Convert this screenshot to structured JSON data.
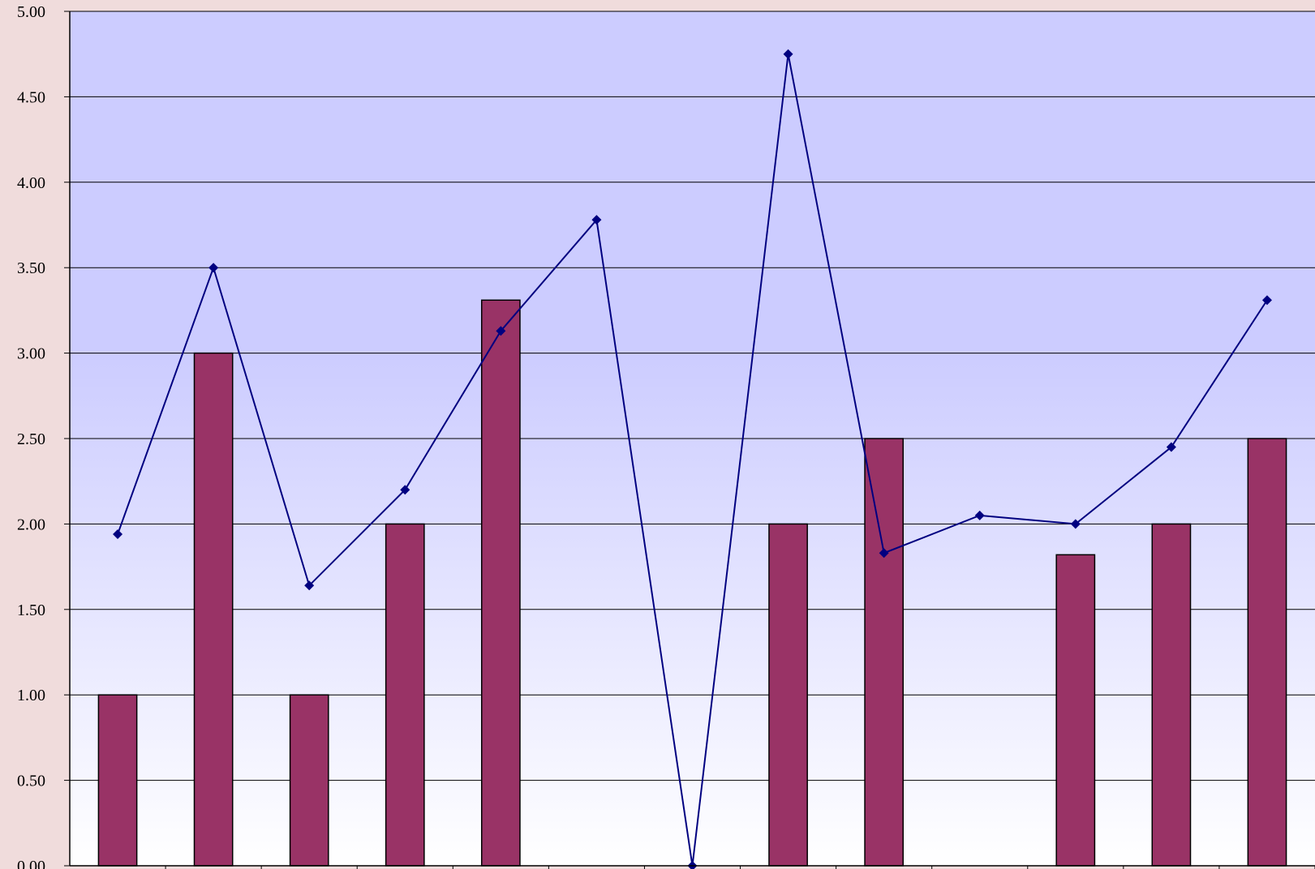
{
  "chart_data": {
    "type": "bar",
    "y_ticks": [
      "0.00",
      "0.50",
      "1.00",
      "1.50",
      "2.00",
      "2.50",
      "3.00",
      "3.50",
      "4.00",
      "4.50",
      "5.00"
    ],
    "ylim": [
      0,
      5
    ],
    "grid": true,
    "category_count": 13,
    "series": [
      {
        "type": "bar",
        "values": [
          1.0,
          3.0,
          1.0,
          2.0,
          3.31,
          null,
          null,
          2.0,
          2.5,
          null,
          1.82,
          2.0,
          2.5
        ],
        "color": "#993366"
      },
      {
        "type": "line",
        "values": [
          1.94,
          3.5,
          1.64,
          2.2,
          3.13,
          3.78,
          0.0,
          4.75,
          1.83,
          2.05,
          2.0,
          2.45,
          3.31
        ],
        "color": "#000080"
      }
    ],
    "background_gradient": [
      "#ccccff",
      "#ffffff"
    ]
  }
}
